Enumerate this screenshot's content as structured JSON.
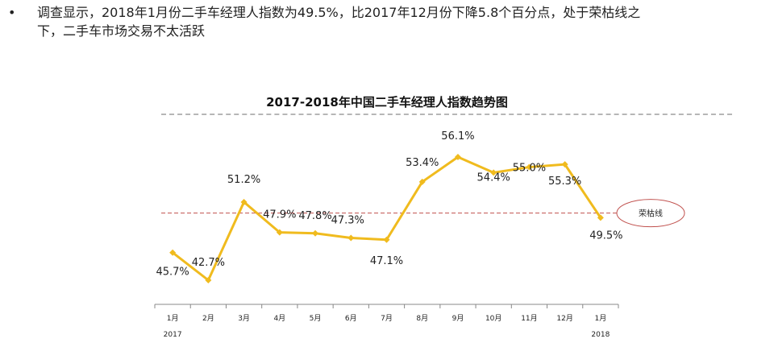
{
  "bullet": {
    "marker": "•",
    "text_line1": "调查显示，2018年1月份二手车经理人指数为49.5%，比2017年12月份下降5.8个百分点，处于荣枯线之",
    "text_line2": "下，二手车市场交易不太活跃"
  },
  "chart_data": {
    "type": "line",
    "title": "2017-2018年中国二手车经理人指数趋势图",
    "categories": [
      "1月",
      "2月",
      "3月",
      "4月",
      "5月",
      "6月",
      "7月",
      "8月",
      "9月",
      "10月",
      "11月",
      "12月",
      "1月"
    ],
    "year_labels": [
      {
        "index": 0,
        "text": "2017"
      },
      {
        "index": 12,
        "text": "2018"
      }
    ],
    "series": [
      {
        "values": [
          45.7,
          42.7,
          51.2,
          47.9,
          47.8,
          47.3,
          47.1,
          53.4,
          56.1,
          54.4,
          55.0,
          55.3,
          49.5
        ],
        "labels": [
          "45.7%",
          "42.7%",
          "51.2%",
          "47.9%",
          "47.8%",
          "47.3%",
          "47.1%",
          "53.4%",
          "56.1%",
          "54.4%",
          "55.0%",
          "55.3%",
          "49.5%"
        ],
        "color": "#F0BB1E"
      }
    ],
    "reference_line": {
      "value": 50,
      "label": "荣枯线",
      "color": "#C0504D"
    },
    "ylim": [
      40,
      60
    ],
    "grid": false,
    "legend": "none"
  }
}
